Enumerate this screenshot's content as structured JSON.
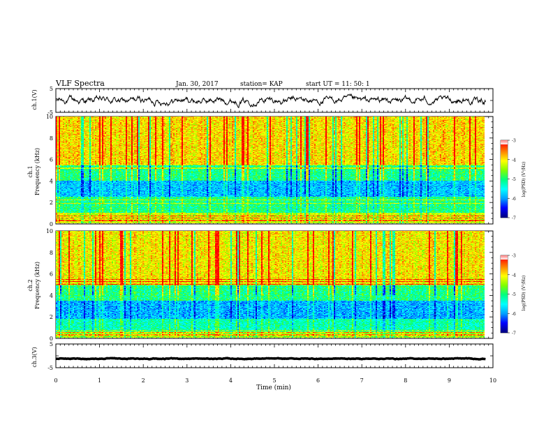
{
  "header": {
    "title": "VLF Spectra",
    "date": "Jan. 30, 2017",
    "station": "station= KAP",
    "start": "start  UT =   11: 50: 1"
  },
  "chart_data": [
    {
      "type": "line",
      "panel": "ch1-waveform",
      "ylabel": "ch.1(V)",
      "ylim": [
        -5,
        5
      ],
      "y_ticks": [
        "5",
        "-5"
      ],
      "xlim": [
        0,
        10
      ],
      "x_end": 9.83,
      "y_center": 0,
      "y_amplitude": 1.8,
      "color": "#000000"
    },
    {
      "type": "heatmap",
      "panel": "ch1-spectrogram",
      "ylabel_line1": "ch.1",
      "ylabel_line2": "Frequency (kHz)",
      "xlim": [
        0,
        10
      ],
      "x_end": 9.83,
      "ylim": [
        0,
        10
      ],
      "y_ticks": [
        "0",
        "2",
        "4",
        "6",
        "8",
        "10"
      ],
      "colorbar_label": "log(PSD) (V²/Hz)",
      "colorbar_range": [
        -7,
        -3
      ],
      "colorbar_ticks": [
        "-3",
        "-4",
        "-5",
        "-6",
        "-7"
      ]
    },
    {
      "type": "heatmap",
      "panel": "ch2-spectrogram",
      "ylabel_line1": "ch.2",
      "ylabel_line2": "Frequency (kHz)",
      "xlim": [
        0,
        10
      ],
      "x_end": 9.83,
      "ylim": [
        0,
        10
      ],
      "y_ticks": [
        "0",
        "2",
        "4",
        "6",
        "8",
        "10"
      ],
      "colorbar_label": "log(PSD) (V²/Hz)",
      "colorbar_range": [
        -7,
        -3
      ],
      "colorbar_ticks": [
        "-3",
        "-4",
        "-5",
        "-6",
        "-7"
      ]
    },
    {
      "type": "line",
      "panel": "ch3-waveform",
      "ylabel": "ch.3(V)",
      "ylim": [
        -5,
        5
      ],
      "y_ticks": [
        "5",
        "-5"
      ],
      "xlim": [
        0,
        10
      ],
      "x_end": 9.83,
      "y_center": -1.2,
      "y_amplitude": 0.2,
      "color": "#000000"
    }
  ],
  "xaxis": {
    "label": "Time (min)",
    "ticks": [
      "0",
      "1",
      "2",
      "3",
      "4",
      "5",
      "6",
      "7",
      "8",
      "9",
      "10"
    ]
  },
  "colors": {
    "colormap": [
      "#000080",
      "#0000ff",
      "#00a0ff",
      "#00ffff",
      "#00ff80",
      "#80ff00",
      "#ffff00",
      "#ff8000",
      "#ff0000",
      "#ffffff"
    ]
  }
}
